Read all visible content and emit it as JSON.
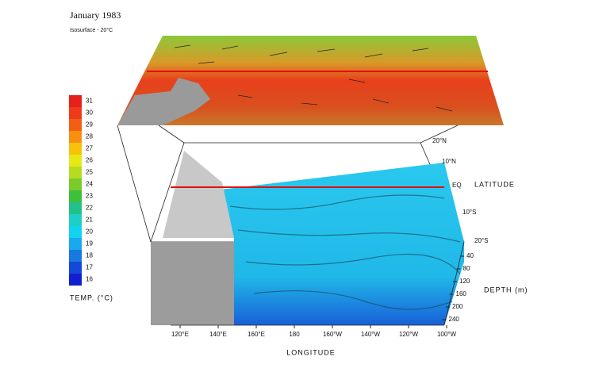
{
  "header": {
    "title": "January 1983",
    "subtitle": "Isosurface - 20°C"
  },
  "colorbar": {
    "label": "TEMP. (°C)",
    "ticks": [
      31,
      30,
      29,
      28,
      27,
      26,
      25,
      24,
      23,
      22,
      21,
      20,
      19,
      18,
      17,
      16
    ],
    "colors": [
      "#e8201c",
      "#ee3a1a",
      "#f35e14",
      "#f7900e",
      "#f8c20a",
      "#e8e816",
      "#b6dc22",
      "#7acb2a",
      "#3fbf3a",
      "#22c08a",
      "#1dcfc8",
      "#12d3ee",
      "#1aa8ee",
      "#1878e0",
      "#1448d8",
      "#1020d0"
    ]
  },
  "longitude": {
    "label": "LONGITUDE",
    "ticks": [
      "120°E",
      "140°E",
      "160°E",
      "180",
      "160°W",
      "140°W",
      "120°W",
      "100°W"
    ]
  },
  "latitude": {
    "label": "LATITUDE",
    "ticks": [
      "20°N",
      "10°N",
      "EQ",
      "10°S",
      "20°S"
    ]
  },
  "depth": {
    "label": "DEPTH (m)",
    "ticks": [
      40,
      80,
      120,
      160,
      200,
      240
    ]
  }
}
